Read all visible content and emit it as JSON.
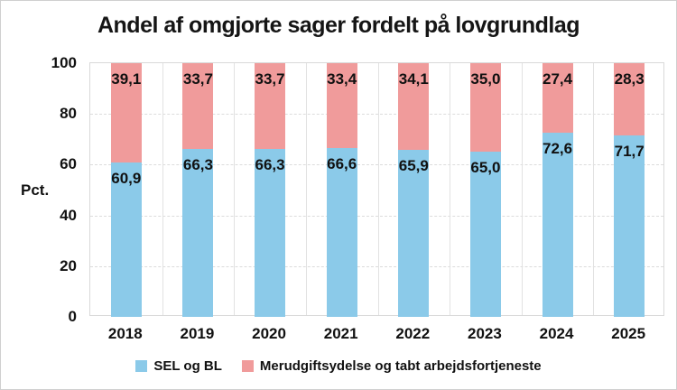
{
  "title": "Andel af omgjorte sager fordelt på lovgrundlag",
  "y_axis": {
    "label": "Pct.",
    "ticks": [
      0,
      20,
      40,
      60,
      80,
      100
    ]
  },
  "chart_data": {
    "type": "bar",
    "stacked": true,
    "title": "Andel af omgjorte sager fordelt på lovgrundlag",
    "xlabel": "",
    "ylabel": "Pct.",
    "ylim": [
      0,
      100
    ],
    "grid": true,
    "legend_position": "bottom",
    "categories": [
      "2018",
      "2019",
      "2020",
      "2021",
      "2022",
      "2023",
      "2024",
      "2025"
    ],
    "series": [
      {
        "name": "SEL og BL",
        "color": "#8BCAE9",
        "values": [
          60.9,
          66.3,
          66.3,
          66.6,
          65.9,
          65.0,
          72.6,
          71.7
        ],
        "labels": [
          "60,9",
          "66,3",
          "66,3",
          "66,6",
          "65,9",
          "65,0",
          "72,6",
          "71,7"
        ]
      },
      {
        "name": "Merudgiftsydelse og tabt arbejdsfortjeneste",
        "color": "#F09B9B",
        "values": [
          39.1,
          33.7,
          33.7,
          33.4,
          34.1,
          35.0,
          27.4,
          28.3
        ],
        "labels": [
          "39,1",
          "33,7",
          "33,7",
          "33,4",
          "34,1",
          "35,0",
          "27,4",
          "28,3"
        ]
      }
    ]
  }
}
